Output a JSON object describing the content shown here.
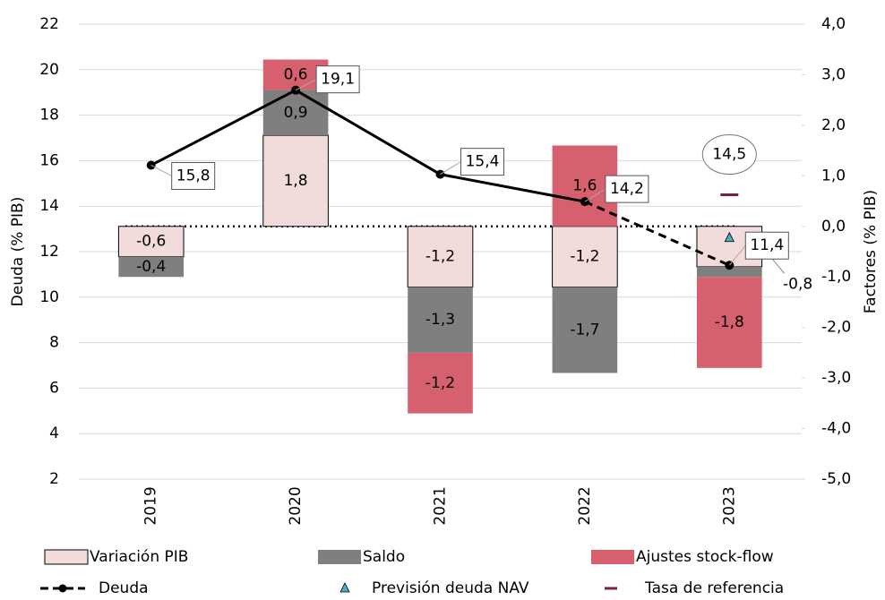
{
  "chart_data": {
    "type": "bar",
    "categories": [
      "2019",
      "2020",
      "2021",
      "2022",
      "2023"
    ],
    "y_label": "Deuda (% PIB)",
    "y2_label": "Factores (% PIB)",
    "ylim": [
      2,
      22
    ],
    "yticks": [
      2,
      4,
      6,
      8,
      10,
      12,
      14,
      16,
      18,
      20,
      22
    ],
    "y2lim": [
      -5,
      4
    ],
    "y2ticks": [
      {
        "value": -5,
        "label": "-5,0"
      },
      {
        "value": -4,
        "label": "-4,0"
      },
      {
        "value": -3,
        "label": "-3,0"
      },
      {
        "value": -2,
        "label": "-2,0"
      },
      {
        "value": -1,
        "label": "-1,0"
      },
      {
        "value": 0,
        "label": "0,0"
      },
      {
        "value": 1,
        "label": "1,0"
      },
      {
        "value": 2,
        "label": "2,0"
      },
      {
        "value": 3,
        "label": "3,0"
      },
      {
        "value": 4,
        "label": "4,0"
      }
    ],
    "grid": true,
    "legend": "bottom",
    "series": [
      {
        "name": "Variación PIB",
        "type": "bar",
        "axis": "y2",
        "color": "#f2dcdb",
        "values": [
          -0.6,
          1.8,
          -1.2,
          -1.2,
          -0.8
        ],
        "value_labels": [
          "-0,6",
          "1,8",
          "-1,2",
          "-1,2",
          "-0,8"
        ]
      },
      {
        "name": "Saldo",
        "type": "bar",
        "axis": "y2",
        "color": "#7f7f7f",
        "values": [
          -0.4,
          0.9,
          -1.3,
          -1.7,
          -0.2
        ],
        "value_labels": [
          "-0,4",
          "0,9",
          "-1,3",
          "-1,7",
          null
        ]
      },
      {
        "name": "Ajustes stock-flow",
        "type": "bar",
        "axis": "y2",
        "color": "#d6606d",
        "values": [
          null,
          0.6,
          -1.2,
          1.6,
          -1.8
        ],
        "value_labels": [
          null,
          "0,6",
          "-1,2",
          "1,6",
          "-1,8"
        ]
      },
      {
        "name": "Deuda",
        "type": "line",
        "color": "#000000",
        "values": [
          15.8,
          19.1,
          15.4,
          14.2,
          11.4
        ],
        "value_labels": [
          "15,8",
          "19,1",
          "15,4",
          "14,2",
          "11,4"
        ]
      },
      {
        "name": "Previsión deuda NAV",
        "type": "triangle",
        "color": "#4bacc6",
        "values": [
          null,
          null,
          null,
          null,
          12.6
        ]
      },
      {
        "name": "Tasa de referencia",
        "type": "dash",
        "color": "#7b2042",
        "values": [
          null,
          null,
          null,
          null,
          14.5
        ],
        "value_labels": [
          null,
          null,
          null,
          null,
          "14,5"
        ]
      }
    ]
  }
}
